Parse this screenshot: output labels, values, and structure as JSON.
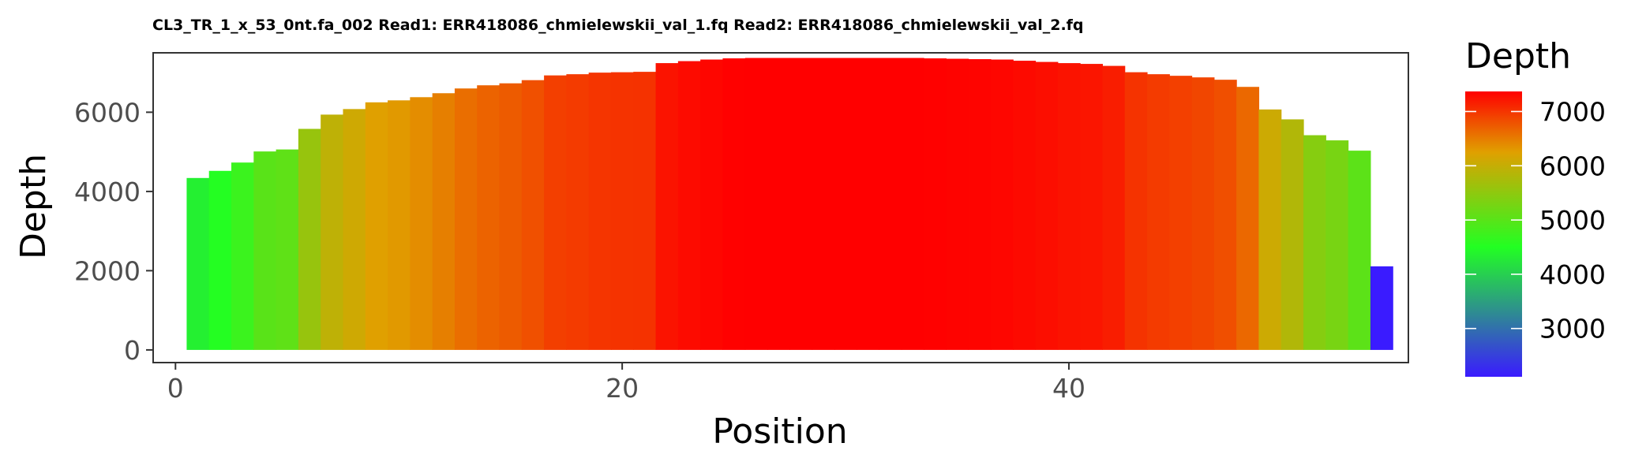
{
  "chart_data": {
    "type": "bar",
    "title": "CL3_TR_1_x_53_0nt.fa_002 Read1: ERR418086_chmielewskii_val_1.fq Read2: ERR418086_chmielewskii_val_2.fq",
    "xlabel": "Position",
    "ylabel": "Depth",
    "x": [
      1,
      2,
      3,
      4,
      5,
      6,
      7,
      8,
      9,
      10,
      11,
      12,
      13,
      14,
      15,
      16,
      17,
      18,
      19,
      20,
      21,
      22,
      23,
      24,
      25,
      26,
      27,
      28,
      29,
      30,
      31,
      32,
      33,
      34,
      35,
      36,
      37,
      38,
      39,
      40,
      41,
      42,
      43,
      44,
      45,
      46,
      47,
      48,
      49,
      50,
      51,
      52,
      53,
      54
    ],
    "values": [
      4340,
      4520,
      4730,
      5010,
      5060,
      5580,
      5940,
      6080,
      6250,
      6300,
      6380,
      6480,
      6600,
      6680,
      6730,
      6810,
      6930,
      6960,
      7000,
      7010,
      7020,
      7240,
      7290,
      7330,
      7360,
      7370,
      7370,
      7370,
      7370,
      7370,
      7370,
      7370,
      7370,
      7360,
      7350,
      7340,
      7330,
      7300,
      7270,
      7240,
      7220,
      7170,
      7010,
      6960,
      6920,
      6880,
      6820,
      6640,
      6070,
      5820,
      5420,
      5290,
      5030,
      2110
    ],
    "xlim": [
      -1,
      55.2
    ],
    "ylim": [
      -320,
      7500
    ],
    "x_ticks": [
      0,
      20,
      40
    ],
    "y_ticks": [
      0,
      2000,
      4000,
      6000
    ],
    "grid": false,
    "legend": {
      "title": "Depth",
      "placement": "right",
      "min": 2110,
      "max": 7370,
      "ticks": [
        3000,
        4000,
        5000,
        6000,
        7000
      ]
    },
    "color_scale": {
      "stops": [
        {
          "value": 2110,
          "color": "#3a1bff"
        },
        {
          "value": 4500,
          "color": "#22ff22"
        },
        {
          "value": 6250,
          "color": "#e0a000"
        },
        {
          "value": 7370,
          "color": "#ff0000"
        }
      ]
    }
  }
}
